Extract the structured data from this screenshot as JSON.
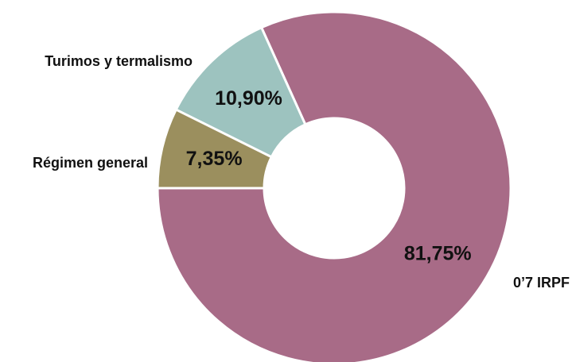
{
  "chart_data": {
    "type": "donut",
    "categories": [
      "0’7 IRPF",
      "Turimos y termalismo",
      "Régimen general"
    ],
    "values": [
      81.75,
      10.9,
      7.35
    ],
    "value_labels": [
      "81,75%",
      "10,90%",
      "7,35%"
    ],
    "colors": [
      "#a86b87",
      "#9dc3bf",
      "#9b8f5e"
    ]
  }
}
